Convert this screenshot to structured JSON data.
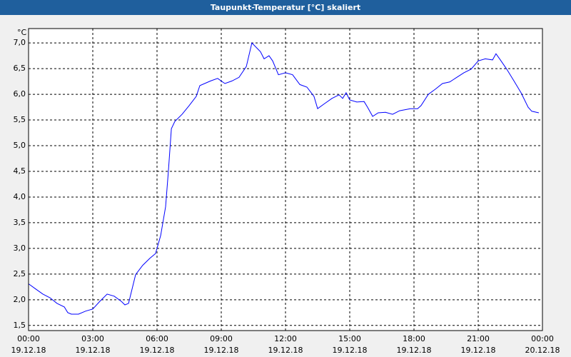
{
  "chart_data": {
    "type": "line",
    "title": "Taupunkt-Temperatur [°C] skaliert",
    "y_label": "°C",
    "xlim": [
      0,
      24
    ],
    "ylim": [
      1.4,
      7.28
    ],
    "grid": true,
    "xticks": [
      {
        "value": 0,
        "label": "00:00",
        "sublabel": "19.12.18"
      },
      {
        "value": 3,
        "label": "03:00",
        "sublabel": "19.12.18"
      },
      {
        "value": 6,
        "label": "06:00",
        "sublabel": "19.12.18"
      },
      {
        "value": 9,
        "label": "09:00",
        "sublabel": "19.12.18"
      },
      {
        "value": 12,
        "label": "12:00",
        "sublabel": "19.12.18"
      },
      {
        "value": 15,
        "label": "15:00",
        "sublabel": "19.12.18"
      },
      {
        "value": 18,
        "label": "18:00",
        "sublabel": "19.12.18"
      },
      {
        "value": 21,
        "label": "21:00",
        "sublabel": "19.12.18"
      },
      {
        "value": 24,
        "label": "00:00",
        "sublabel": "20.12.18"
      }
    ],
    "yticks": [
      {
        "value": 1.5,
        "label": "1,5"
      },
      {
        "value": 2,
        "label": "2,0"
      },
      {
        "value": 2.5,
        "label": "2,5"
      },
      {
        "value": 3,
        "label": "3,0"
      },
      {
        "value": 3.5,
        "label": "3,5"
      },
      {
        "value": 4,
        "label": "4,0"
      },
      {
        "value": 4.5,
        "label": "4,5"
      },
      {
        "value": 5,
        "label": "5,0"
      },
      {
        "value": 5.5,
        "label": "5,5"
      },
      {
        "value": 6,
        "label": "6,0"
      },
      {
        "value": 6.5,
        "label": "6,5"
      },
      {
        "value": 7,
        "label": "7,0"
      }
    ],
    "series": [
      {
        "color": "#0000ff",
        "x": [
          0,
          0.33,
          0.67,
          1.0,
          1.33,
          1.67,
          1.83,
          2.0,
          2.33,
          2.67,
          3.0,
          3.33,
          3.67,
          4.0,
          4.33,
          4.5,
          4.67,
          5.0,
          5.33,
          5.67,
          5.93,
          6.17,
          6.4,
          6.53,
          6.67,
          6.83,
          7.17,
          7.5,
          7.83,
          8.0,
          8.5,
          8.83,
          9.17,
          9.5,
          9.83,
          10.17,
          10.43,
          10.83,
          11.0,
          11.23,
          11.4,
          11.67,
          12.0,
          12.33,
          12.67,
          13.0,
          13.33,
          13.5,
          13.83,
          14.17,
          14.5,
          14.67,
          14.83,
          15.0,
          15.33,
          15.67,
          15.83,
          16.07,
          16.33,
          16.67,
          17.0,
          17.33,
          17.83,
          18.17,
          18.33,
          18.67,
          19.0,
          19.33,
          19.67,
          20.0,
          20.33,
          20.67,
          21.0,
          21.33,
          21.67,
          21.83,
          22.0,
          22.33,
          22.67,
          23.0,
          23.33,
          23.5,
          23.83
        ],
        "values": [
          2.31,
          2.21,
          2.11,
          2.04,
          1.93,
          1.86,
          1.75,
          1.72,
          1.72,
          1.78,
          1.82,
          1.97,
          2.11,
          2.07,
          1.97,
          1.9,
          1.93,
          2.49,
          2.67,
          2.81,
          2.9,
          3.25,
          3.81,
          4.5,
          5.33,
          5.47,
          5.61,
          5.78,
          5.96,
          6.17,
          6.26,
          6.31,
          6.21,
          6.26,
          6.33,
          6.54,
          7.0,
          6.83,
          6.69,
          6.75,
          6.65,
          6.38,
          6.42,
          6.38,
          6.19,
          6.14,
          5.96,
          5.72,
          5.82,
          5.92,
          5.99,
          5.92,
          6.03,
          5.89,
          5.85,
          5.86,
          5.75,
          5.57,
          5.64,
          5.65,
          5.61,
          5.68,
          5.72,
          5.72,
          5.78,
          6.0,
          6.1,
          6.21,
          6.24,
          6.33,
          6.42,
          6.49,
          6.65,
          6.69,
          6.67,
          6.79,
          6.69,
          6.49,
          6.26,
          6.03,
          5.75,
          5.67,
          5.64
        ]
      }
    ]
  }
}
